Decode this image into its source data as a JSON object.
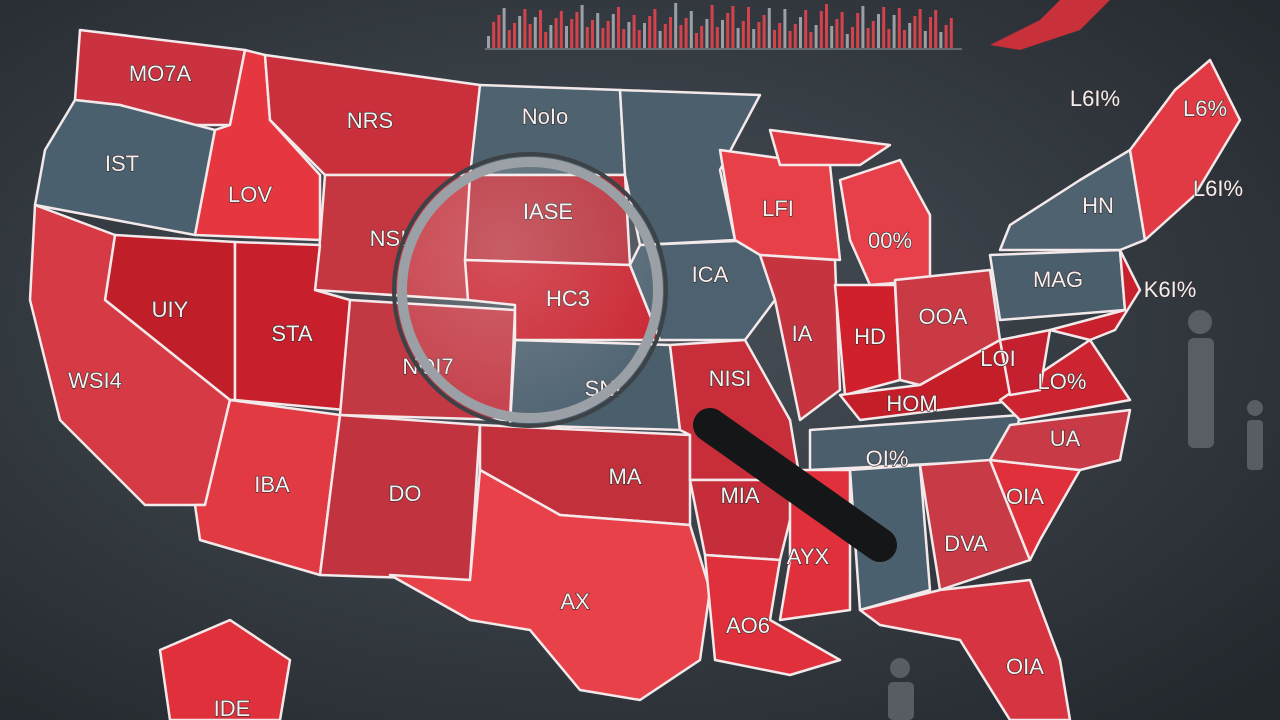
{
  "map": {
    "labels": [
      "MO7A",
      "NRS",
      "NoIo",
      "IST",
      "LOV",
      "IASE",
      "LFI",
      "00%",
      "NSI",
      "ICA",
      "UIY",
      "STA",
      "HC3",
      "IA",
      "HD",
      "OOA",
      "MAG",
      "HN",
      "L6I%",
      "L6%",
      "L6I%",
      "K6I%",
      "WSI4",
      "NOI7",
      "SNI",
      "NISI",
      "HOM",
      "LOI",
      "LO%",
      "UA",
      "OI%",
      "IBA",
      "DO",
      "MA",
      "MIA",
      "OIA",
      "AYX",
      "DVA",
      "AX",
      "AO6",
      "OIA",
      "IDE"
    ]
  }
}
